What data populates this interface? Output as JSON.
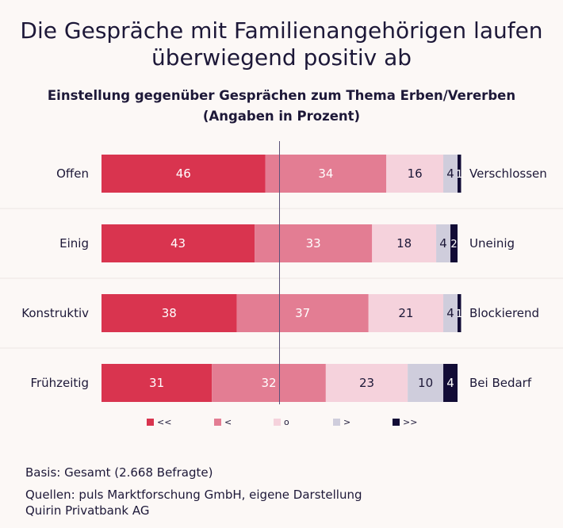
{
  "title_line1": "Die Gespräche mit Familienangehörigen laufen",
  "title_line2": "überwiegend positiv ab",
  "subtitle_line1": "Einstellung gegenüber Gesprächen zum Thema Erben/Vererben",
  "subtitle_line2": "(Angaben in Prozent)",
  "colors": {
    "c0": "#d9344f",
    "c1": "#e37d93",
    "c2": "#f5d2dc",
    "c3": "#cfcddc",
    "c4": "#120c36",
    "midline": "#5a537a",
    "separator": "#ece6e4"
  },
  "chart_data": {
    "type": "bar",
    "orientation": "horizontal",
    "stacked": true,
    "categories": [
      "Offen",
      "Einig",
      "Konstruktiv",
      "Frühzeitig"
    ],
    "right_labels": [
      "Verschlossen",
      "Uneinig",
      "Blockierend",
      "Bei Bedarf"
    ],
    "series": [
      {
        "name": "<<",
        "values": [
          46,
          43,
          38,
          31
        ]
      },
      {
        "name": "<",
        "values": [
          34,
          33,
          37,
          32
        ]
      },
      {
        "name": "o",
        "values": [
          16,
          18,
          21,
          23
        ]
      },
      {
        "name": ">",
        "values": [
          4,
          4,
          4,
          10
        ]
      },
      {
        "name": ">>",
        "values": [
          1,
          2,
          1,
          4
        ]
      }
    ],
    "xlim": [
      0,
      100
    ],
    "legend": "bottom"
  },
  "footer": {
    "basis": "Basis: Gesamt (2.668 Befragte)",
    "sources_line1": "Quellen: puls Marktforschung GmbH, eigene Darstellung",
    "sources_line2": "Quirin Privatbank AG"
  }
}
